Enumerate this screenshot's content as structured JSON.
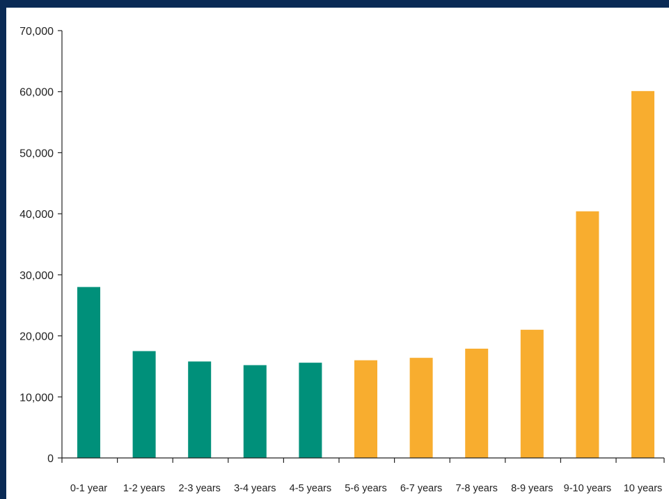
{
  "chart_data": {
    "type": "bar",
    "categories": [
      "0-1 year",
      "1-2 years",
      "2-3 years",
      "3-4 years",
      "4-5 years",
      "5-6 years",
      "6-7 years",
      "7-8 years",
      "8-9 years",
      "9-10 years",
      "10 years"
    ],
    "values": [
      28000,
      17500,
      15800,
      15200,
      15600,
      16000,
      16400,
      17900,
      21000,
      40400,
      60100
    ],
    "bar_colors": [
      "#00907a",
      "#00907a",
      "#00907a",
      "#00907a",
      "#00907a",
      "#f8ad2f",
      "#f8ad2f",
      "#f8ad2f",
      "#f8ad2f",
      "#f8ad2f",
      "#f8ad2f"
    ],
    "title": "",
    "xlabel": "",
    "ylabel": "",
    "ylim": [
      0,
      70000
    ],
    "yticks": [
      0,
      10000,
      20000,
      30000,
      40000,
      50000,
      60000,
      70000
    ],
    "ytick_labels": [
      "0",
      "10,000",
      "20,000",
      "30,000",
      "40,000",
      "50,000",
      "60,000",
      "70,000"
    ],
    "grid": false,
    "legend": "none"
  },
  "colors": {
    "page_background": "#0a2a55",
    "plot_background": "#ffffff",
    "axis": "#222222"
  }
}
